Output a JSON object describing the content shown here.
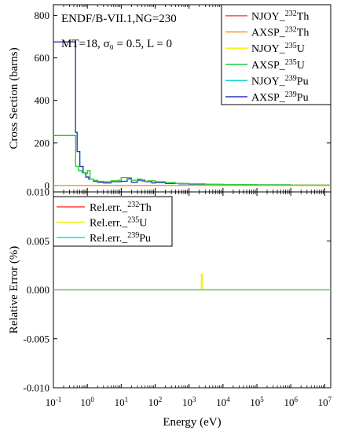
{
  "chart_data": [
    {
      "type": "line",
      "panel": "top",
      "step": true,
      "xscale": "log",
      "xlim": [
        0.1,
        15000000
      ],
      "ylim": [
        -30,
        850
      ],
      "xlabel": "",
      "ylabel": "Cross Section (barns)",
      "yticks": [
        0,
        200,
        400,
        600,
        800
      ],
      "ytick_labels": [
        "0",
        "200",
        "400",
        "600",
        "800"
      ],
      "annotations": [
        "ENDF/B-VII.1,NG=230",
        "MT=18, σ₀ = 0.5, L = 0"
      ],
      "legend_position": "top-right",
      "series": [
        {
          "name": "NJOY_232Th",
          "legend_main": "NJOY_",
          "legend_sup": "232",
          "legend_tail": "Th",
          "color": "#ff3b3b",
          "x": [
            0.1,
            10000000,
            15000000
          ],
          "y": [
            0,
            0.2,
            0.2
          ]
        },
        {
          "name": "AXSP_232Th",
          "legend_main": "AXSP_",
          "legend_sup": "232",
          "legend_tail": "Th",
          "color": "#ff9a1f",
          "x": [
            0.1,
            10000000,
            15000000
          ],
          "y": [
            0,
            0.2,
            0.2
          ]
        },
        {
          "name": "NJOY_235U",
          "legend_main": "NJOY_",
          "legend_sup": "235",
          "legend_tail": "U",
          "color": "#f2f200",
          "x": [
            0.1,
            0.4,
            0.45,
            0.55,
            0.7,
            0.85,
            1.0,
            1.2,
            1.5,
            2,
            3,
            5,
            8,
            10,
            15,
            20,
            30,
            40,
            60,
            100,
            200,
            400,
            1000,
            3000,
            10000,
            100000,
            1000000,
            15000000
          ],
          "y": [
            235,
            235,
            90,
            70,
            60,
            55,
            70,
            30,
            25,
            20,
            18,
            22,
            25,
            38,
            30,
            25,
            30,
            20,
            22,
            18,
            14,
            10,
            8,
            6,
            4,
            3,
            2,
            2
          ]
        },
        {
          "name": "AXSP_235U",
          "legend_main": "AXSP_",
          "legend_sup": "235",
          "legend_tail": "U",
          "color": "#10d040",
          "x": [
            0.1,
            0.4,
            0.45,
            0.55,
            0.7,
            0.85,
            1.0,
            1.2,
            1.5,
            2,
            3,
            5,
            8,
            10,
            15,
            20,
            30,
            40,
            60,
            100,
            200,
            400,
            1000,
            3000,
            10000,
            100000,
            1000000,
            15000000
          ],
          "y": [
            235,
            235,
            90,
            70,
            60,
            55,
            70,
            30,
            25,
            20,
            18,
            22,
            25,
            38,
            30,
            25,
            30,
            20,
            22,
            18,
            14,
            10,
            8,
            6,
            4,
            3,
            2,
            2
          ]
        },
        {
          "name": "NJOY_239Pu",
          "legend_main": "NJOY_",
          "legend_sup": "239",
          "legend_tail": "Pu",
          "color": "#18d8d8",
          "x": [
            0.1,
            0.4,
            0.45,
            0.5,
            0.6,
            0.75,
            0.9,
            1.1,
            1.5,
            2,
            3,
            5,
            10,
            15,
            20,
            30,
            50,
            80,
            100,
            200,
            500,
            1000,
            10000,
            100000,
            1000000,
            15000000
          ],
          "y": [
            675,
            675,
            250,
            160,
            90,
            60,
            40,
            30,
            20,
            15,
            12,
            18,
            20,
            35,
            15,
            25,
            18,
            12,
            14,
            10,
            8,
            6,
            4,
            3,
            2,
            2
          ]
        },
        {
          "name": "AXSP_239Pu",
          "legend_main": "AXSP_",
          "legend_sup": "239",
          "legend_tail": "Pu",
          "color": "#3030c0",
          "x": [
            0.1,
            0.4,
            0.45,
            0.5,
            0.6,
            0.75,
            0.9,
            1.1,
            1.5,
            2,
            3,
            5,
            10,
            15,
            20,
            30,
            50,
            80,
            100,
            200,
            500,
            1000,
            10000,
            100000,
            1000000,
            15000000
          ],
          "y": [
            675,
            675,
            250,
            160,
            90,
            60,
            40,
            30,
            20,
            15,
            12,
            18,
            20,
            35,
            15,
            25,
            18,
            12,
            14,
            10,
            8,
            6,
            4,
            3,
            2,
            2
          ]
        }
      ]
    },
    {
      "type": "line",
      "panel": "bottom",
      "xscale": "log",
      "xlim": [
        0.1,
        15000000
      ],
      "ylim": [
        -0.01,
        0.01
      ],
      "xlabel": "Energy (eV)",
      "ylabel": "Relative Error (%)",
      "yticks": [
        -0.01,
        -0.005,
        0,
        0.005,
        0.01
      ],
      "ytick_labels": [
        "-0.010",
        "-0.005",
        "0.000",
        "0.005",
        "0.010"
      ],
      "xticks": [
        0.1,
        1,
        10,
        100,
        1000,
        10000,
        100000,
        1000000,
        10000000
      ],
      "xtick_labels": [
        {
          "base": "10",
          "exp": "-1"
        },
        {
          "base": "10",
          "exp": "0"
        },
        {
          "base": "10",
          "exp": "1"
        },
        {
          "base": "10",
          "exp": "2"
        },
        {
          "base": "10",
          "exp": "3"
        },
        {
          "base": "10",
          "exp": "4"
        },
        {
          "base": "10",
          "exp": "5"
        },
        {
          "base": "10",
          "exp": "6"
        },
        {
          "base": "10",
          "exp": "7"
        }
      ],
      "legend_position": "top-left",
      "series": [
        {
          "name": "Rel.err._232Th",
          "legend_main": "Rel.err._",
          "legend_sup": "232",
          "legend_tail": "Th",
          "color": "#ff3b3b",
          "x": [
            0.1,
            15000000
          ],
          "y": [
            0,
            0
          ]
        },
        {
          "name": "Rel.err._235U",
          "legend_main": "Rel.err._",
          "legend_sup": "235",
          "legend_tail": "U",
          "color": "#f2f200",
          "x": [
            0.1,
            2300,
            2300,
            2500,
            2500,
            15000000
          ],
          "y": [
            0,
            0,
            0.0016,
            0.0016,
            0,
            0
          ]
        },
        {
          "name": "Rel.err._239Pu",
          "legend_main": "Rel.err._",
          "legend_sup": "239",
          "legend_tail": "Pu",
          "color": "#18d8d8",
          "x": [
            0.1,
            15000000
          ],
          "y": [
            0,
            0
          ]
        }
      ]
    }
  ]
}
